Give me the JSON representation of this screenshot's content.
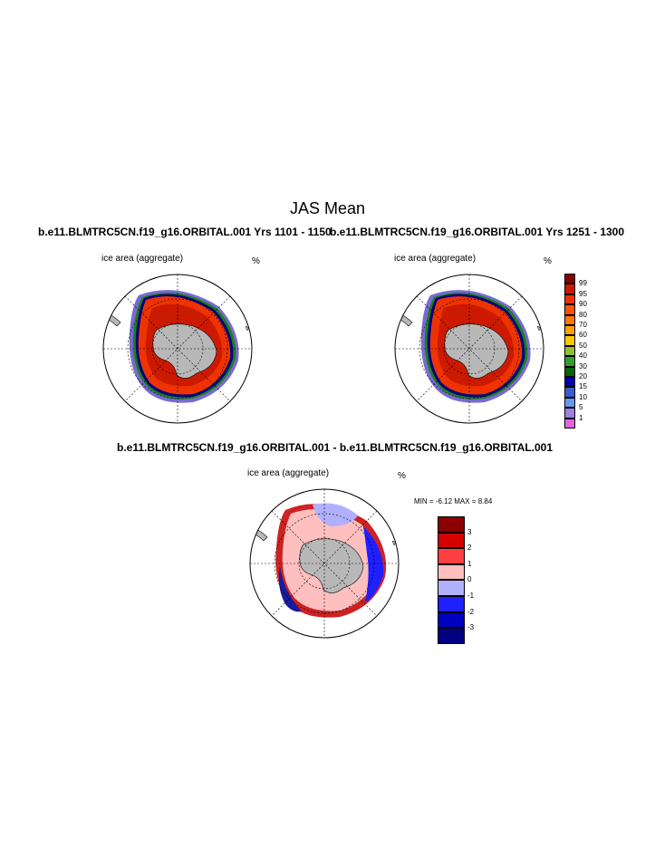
{
  "figure": {
    "title": "JAS Mean",
    "run_titles": [
      "b.e11.BLMTRC5CN.f19_g16.ORBITAL.001  Yrs 1101 - 1150",
      "b.e11.BLMTRC5CN.f19_g16.ORBITAL.001  Yrs 1251 - 1300"
    ],
    "diff_title": "b.e11.BLMTRC5CN.f19_g16.ORBITAL.001 - b.e11.BLMTRC5CN.f19_g16.ORBITAL.001"
  },
  "panels": [
    {
      "variable": "ice area  (aggregate)",
      "units": "%"
    },
    {
      "variable": "ice area  (aggregate)",
      "units": "%"
    },
    {
      "variable": "ice area  (aggregate)",
      "units": "%",
      "stats": "MIN =  -6.12 MAX =   8.84"
    }
  ],
  "colorbars": {
    "abs": {
      "labels": [
        "99",
        "95",
        "90",
        "80",
        "70",
        "60",
        "50",
        "40",
        "30",
        "20",
        "15",
        "10",
        "5",
        "1"
      ],
      "colors": [
        "#8b0000",
        "#cc1a00",
        "#ee3300",
        "#ff5500",
        "#ff7700",
        "#ffa200",
        "#ffc800",
        "#8fbf30",
        "#2e9e2e",
        "#006600",
        "#0000b0",
        "#3b5ccc",
        "#6699ee",
        "#9f7fe0",
        "#e066dd"
      ]
    },
    "diff": {
      "labels": [
        "3",
        "2",
        "1",
        "0",
        "-1",
        "-2",
        "-3"
      ],
      "colors": [
        "#8b0000",
        "#d40000",
        "#ff4040",
        "#ffbfbf",
        "#b0b0ff",
        "#2020ff",
        "#0000c0",
        "#000080"
      ]
    }
  }
}
